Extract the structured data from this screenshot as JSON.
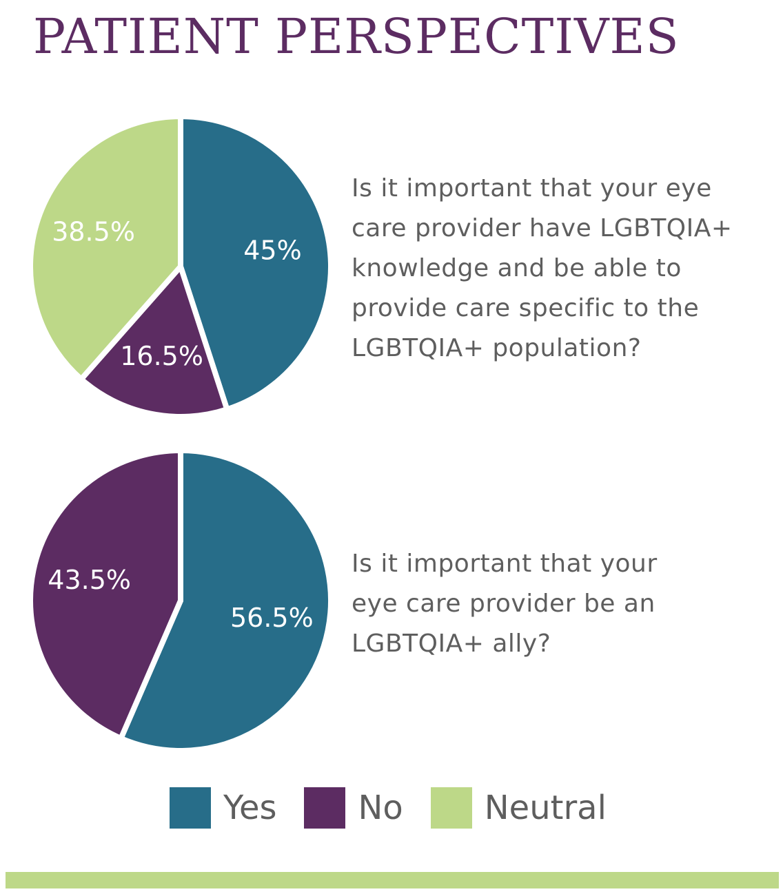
{
  "title": "PATIENT PERSPECTIVES",
  "colors": {
    "yes": "#276d89",
    "no": "#5c2c62",
    "neutral": "#bdd888",
    "title": "#5c2c62",
    "text": "#5e5e5e"
  },
  "chart_data": [
    {
      "type": "pie",
      "question": "Is it important that your eye care provider have LGBTQIA+ knowledge and be able to provide care specific to the LGBTQIA+ population?",
      "slices": [
        {
          "category": "Yes",
          "value": 45,
          "label": "45%"
        },
        {
          "category": "No",
          "value": 16.5,
          "label": "16.5%"
        },
        {
          "category": "Neutral",
          "value": 38.5,
          "label": "38.5%"
        }
      ]
    },
    {
      "type": "pie",
      "question": "Is it important that your eye care provider be an LGBTQIA+ ally?",
      "slices": [
        {
          "category": "Yes",
          "value": 56.5,
          "label": "56.5%"
        },
        {
          "category": "No",
          "value": 43.5,
          "label": "43.5%"
        }
      ]
    }
  ],
  "legend": [
    {
      "label": "Yes",
      "color": "#276d89"
    },
    {
      "label": "No",
      "color": "#5c2c62"
    },
    {
      "label": "Neutral",
      "color": "#bdd888"
    }
  ]
}
